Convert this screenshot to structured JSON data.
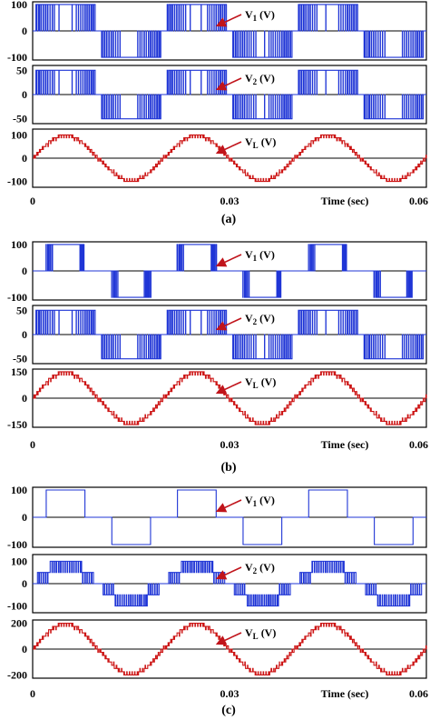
{
  "colors": {
    "blue": "#1f35d6",
    "red": "#cc1414",
    "arrow": "#c0141b"
  },
  "chart_data": [
    {
      "caption": "(a)",
      "type": "line",
      "xlabel": "Time (sec)",
      "x_ticks": [
        "0",
        "0.03",
        "0.06"
      ],
      "xlim": [
        0,
        0.06
      ],
      "fundamental_hz": 50,
      "panels": [
        {
          "signal": "V1",
          "label_main": "V",
          "label_sub": "1",
          "label_unit": " (V)",
          "color": "blue",
          "ylim": [
            -110,
            110
          ],
          "yticks": [
            "100",
            "0",
            "-100"
          ],
          "ytick_values": [
            100,
            0,
            -100
          ],
          "waveform": "pwm_square",
          "amplitude": 100
        },
        {
          "signal": "V2",
          "label_main": "V",
          "label_sub": "2",
          "label_unit": " (V)",
          "color": "blue",
          "ylim": [
            -60,
            60
          ],
          "yticks": [
            "50",
            "0",
            "-50"
          ],
          "ytick_values": [
            50,
            0,
            -50
          ],
          "waveform": "pwm_square",
          "amplitude": 50
        },
        {
          "signal": "VL",
          "label_main": "V",
          "label_sub": "L",
          "label_unit": " (V)",
          "color": "red",
          "ylim": [
            -125,
            125
          ],
          "yticks": [
            "100",
            "0",
            "-100"
          ],
          "ytick_values": [
            100,
            0,
            -100
          ],
          "waveform": "multilevel_sine",
          "amplitude": 100
        }
      ]
    },
    {
      "caption": "(b)",
      "type": "line",
      "xlabel": "Time (sec)",
      "x_ticks": [
        "0",
        "0.03",
        "0.06"
      ],
      "xlim": [
        0,
        0.06
      ],
      "fundamental_hz": 50,
      "panels": [
        {
          "signal": "V1",
          "label_main": "V",
          "label_sub": "1",
          "label_unit": " (V)",
          "color": "blue",
          "ylim": [
            -110,
            110
          ],
          "yticks": [
            "100",
            "0",
            "-100"
          ],
          "ytick_values": [
            100,
            0,
            -100
          ],
          "waveform": "edge_pwm_square",
          "amplitude": 100
        },
        {
          "signal": "V2",
          "label_main": "V",
          "label_sub": "2",
          "label_unit": " (V)",
          "color": "blue",
          "ylim": [
            -60,
            60
          ],
          "yticks": [
            "50",
            "0",
            "-50"
          ],
          "ytick_values": [
            50,
            0,
            -50
          ],
          "waveform": "pwm_square",
          "amplitude": 50
        },
        {
          "signal": "VL",
          "label_main": "V",
          "label_sub": "L",
          "label_unit": " (V)",
          "color": "red",
          "ylim": [
            -165,
            165
          ],
          "yticks": [
            "150",
            "0",
            "-150"
          ],
          "ytick_values": [
            150,
            0,
            -150
          ],
          "waveform": "multilevel_sine",
          "amplitude": 150
        }
      ]
    },
    {
      "caption": "(c)",
      "type": "line",
      "xlabel": "Time (sec)",
      "x_ticks": [
        "0",
        "0.03",
        "0.06"
      ],
      "xlim": [
        0,
        0.06
      ],
      "fundamental_hz": 50,
      "panels": [
        {
          "signal": "V1",
          "label_main": "V",
          "label_sub": "1",
          "label_unit": " (V)",
          "color": "blue",
          "ylim": [
            -110,
            110
          ],
          "yticks": [
            "100",
            "0",
            "-100"
          ],
          "ytick_values": [
            100,
            0,
            -100
          ],
          "waveform": "square",
          "amplitude": 100
        },
        {
          "signal": "V2",
          "label_main": "V",
          "label_sub": "2",
          "label_unit": " (V)",
          "color": "blue",
          "ylim": [
            -130,
            130
          ],
          "yticks": [
            "100",
            "0",
            "-100"
          ],
          "ytick_values": [
            100,
            0,
            -100
          ],
          "waveform": "stepped_pwm",
          "amplitude": 100
        },
        {
          "signal": "VL",
          "label_main": "V",
          "label_sub": "L",
          "label_unit": " (V)",
          "color": "red",
          "ylim": [
            -225,
            225
          ],
          "yticks": [
            "200",
            "0",
            "-200"
          ],
          "ytick_values": [
            200,
            0,
            -200
          ],
          "waveform": "multilevel_sine",
          "amplitude": 200
        }
      ]
    }
  ]
}
